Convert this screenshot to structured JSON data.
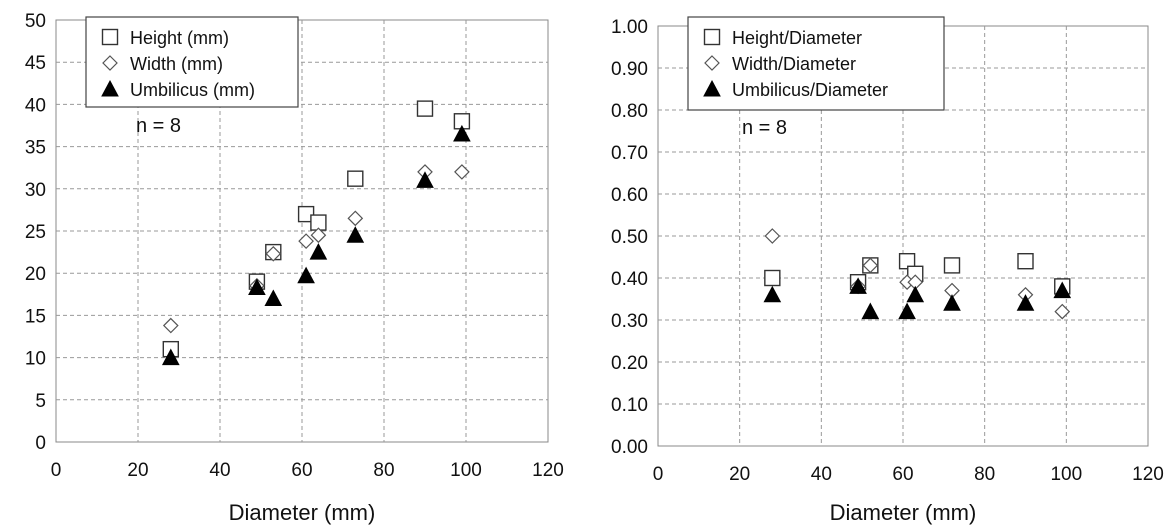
{
  "chart_data": [
    {
      "type": "scatter",
      "xlabel": "Diameter (mm)",
      "ylabel": "",
      "xlim": [
        0,
        120
      ],
      "ylim": [
        0,
        50
      ],
      "xticks": [
        "0",
        "20",
        "40",
        "60",
        "80",
        "100",
        "120"
      ],
      "yticks": [
        "0",
        "5",
        "10",
        "15",
        "20",
        "25",
        "30",
        "35",
        "40",
        "45",
        "50"
      ],
      "grid": true,
      "legend_position": "top-left",
      "annotation": "n = 8",
      "series": [
        {
          "name": "Height (mm)",
          "marker": "open-square",
          "x": [
            28,
            49,
            53,
            61,
            64,
            73,
            90,
            99
          ],
          "y": [
            11,
            19,
            22.5,
            27,
            26,
            31.2,
            39.5,
            38
          ]
        },
        {
          "name": "Width (mm)",
          "marker": "open-diamond",
          "x": [
            28,
            49,
            53,
            61,
            64,
            73,
            90,
            99
          ],
          "y": [
            13.8,
            18.5,
            22.3,
            23.8,
            24.5,
            26.5,
            32,
            32
          ]
        },
        {
          "name": "Umbilicus (mm)",
          "marker": "filled-triangle",
          "x": [
            28,
            49,
            53,
            61,
            64,
            73,
            90,
            99
          ],
          "y": [
            10,
            18.3,
            17,
            19.7,
            22.5,
            24.5,
            31,
            36.5
          ]
        }
      ]
    },
    {
      "type": "scatter",
      "xlabel": "Diameter (mm)",
      "ylabel": "",
      "xlim": [
        0,
        120
      ],
      "ylim": [
        0,
        1
      ],
      "xticks": [
        "0",
        "20",
        "40",
        "60",
        "80",
        "100",
        "120"
      ],
      "yticks": [
        "0.00",
        "0.10",
        "0.20",
        "0.30",
        "0.40",
        "0.50",
        "0.60",
        "0.70",
        "0.80",
        "0.90",
        "1.00"
      ],
      "grid": true,
      "legend_position": "top-left",
      "annotation": "n = 8",
      "series": [
        {
          "name": "Height/Diameter",
          "marker": "open-square",
          "x": [
            28,
            49,
            52,
            61,
            63,
            72,
            90,
            99
          ],
          "y": [
            0.4,
            0.39,
            0.43,
            0.44,
            0.41,
            0.43,
            0.44,
            0.38
          ]
        },
        {
          "name": "Width/Diameter",
          "marker": "open-diamond",
          "x": [
            28,
            49,
            52,
            61,
            63,
            72,
            90,
            99
          ],
          "y": [
            0.5,
            0.38,
            0.43,
            0.39,
            0.39,
            0.37,
            0.36,
            0.32
          ]
        },
        {
          "name": "Umbilicus/Diameter",
          "marker": "filled-triangle",
          "x": [
            28,
            49,
            52,
            61,
            63,
            72,
            90,
            99
          ],
          "y": [
            0.36,
            0.38,
            0.32,
            0.32,
            0.36,
            0.34,
            0.34,
            0.37
          ]
        }
      ]
    }
  ]
}
